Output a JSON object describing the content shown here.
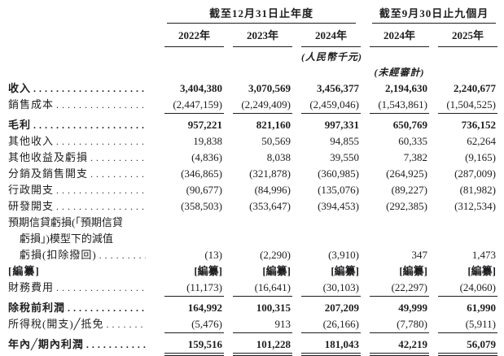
{
  "document": {
    "language": "zh-Hant",
    "background": "#ffffff",
    "text_color": "#1e1e20"
  },
  "table": {
    "groups": [
      {
        "title": "截至12月31日止年度",
        "cols": [
          "2022年",
          "2023年",
          "2024年"
        ]
      },
      {
        "title": "截至9月30日止九個月",
        "cols": [
          "2024年",
          "2025年"
        ]
      }
    ],
    "unit_note": "(人民幣千元)",
    "unaudited_note": "(未經審計)",
    "rows": [
      {
        "label": "收入",
        "leaders": true,
        "bold": true,
        "values": [
          "3,404,380",
          "3,070,569",
          "3,456,377",
          "2,194,630",
          "2,240,677"
        ]
      },
      {
        "label": "銷售成本",
        "leaders": true,
        "rule": "single",
        "values": [
          "(2,447,159)",
          "(2,249,409)",
          "(2,459,046)",
          "(1,543,861)",
          "(1,504,525)"
        ]
      },
      {
        "label": "毛利",
        "leaders": true,
        "bold": true,
        "values": [
          "957,221",
          "821,160",
          "997,331",
          "650,769",
          "736,152"
        ]
      },
      {
        "label": "其他收入",
        "leaders": true,
        "values": [
          "19,838",
          "50,569",
          "94,855",
          "60,335",
          "62,264"
        ]
      },
      {
        "label": "其他收益及虧損",
        "leaders": true,
        "values": [
          "(4,836)",
          "8,038",
          "39,550",
          "7,382",
          "(9,165)"
        ]
      },
      {
        "label": "分銷及銷售開支",
        "leaders": true,
        "values": [
          "(346,865)",
          "(321,878)",
          "(360,985)",
          "(264,925)",
          "(287,009)"
        ]
      },
      {
        "label": "行政開支",
        "leaders": true,
        "values": [
          "(90,677)",
          "(84,996)",
          "(135,076)",
          "(89,227)",
          "(81,982)"
        ]
      },
      {
        "label": "研發開支",
        "leaders": true,
        "values": [
          "(358,503)",
          "(353,647)",
          "(394,453)",
          "(292,385)",
          "(312,534)"
        ]
      },
      {
        "pre_lines": [
          "預期信貸虧損(「預期信貸",
          "虧損」)模型下的減值"
        ],
        "label": "虧損(扣除撥回)",
        "indent": true,
        "leaders": true,
        "values": [
          "(13)",
          "(2,290)",
          "(3,910)",
          "347",
          "1,473"
        ]
      },
      {
        "label": "[編纂]",
        "bold": true,
        "values": [
          "[編纂]",
          "[編纂]",
          "[編纂]",
          "[編纂]",
          "[編纂]"
        ]
      },
      {
        "label": "財務費用",
        "leaders": true,
        "rule": "single",
        "values": [
          "(11,173)",
          "(16,641)",
          "(30,103)",
          "(22,297)",
          "(24,060)"
        ]
      },
      {
        "label": "除稅前利潤",
        "leaders": true,
        "bold": true,
        "values": [
          "164,992",
          "100,315",
          "207,209",
          "49,999",
          "61,990"
        ]
      },
      {
        "label": "所得稅(開支)╱抵免",
        "leaders": true,
        "rule": "single",
        "values": [
          "(5,476)",
          "913",
          "(26,166)",
          "(7,780)",
          "(5,911)"
        ]
      },
      {
        "label": "年內╱期內利潤",
        "leaders": true,
        "bold": true,
        "rule": "double",
        "values": [
          "159,516",
          "101,228",
          "181,043",
          "42,219",
          "56,079"
        ]
      }
    ]
  }
}
